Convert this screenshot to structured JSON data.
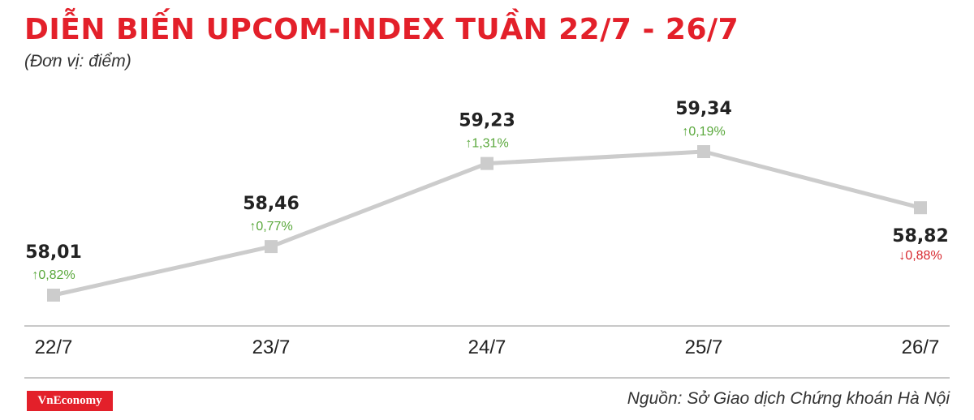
{
  "header": {
    "title": "DIỄN BIẾN UPCOM-INDEX TUẦN 22/7 - 26/7",
    "unit": "(Đơn vị: điểm)"
  },
  "footer": {
    "brand": "VnEconomy",
    "source": "Nguồn: Sở Giao dịch Chứng khoán Hà Nội"
  },
  "colors": {
    "title": "#e3202a",
    "line": "#cccccc",
    "up": "#5aa83c",
    "down": "#d7282e",
    "axis": "#c8c8c8"
  },
  "chart_data": {
    "type": "line",
    "x": [
      "22/7",
      "23/7",
      "24/7",
      "25/7",
      "26/7"
    ],
    "series": [
      {
        "values": [
          58.01,
          58.46,
          59.23,
          59.34,
          58.82
        ],
        "value_labels": [
          "58,01",
          "58,46",
          "59,23",
          "59,34",
          "58,82"
        ],
        "change_labels": [
          "0,82%",
          "0,77%",
          "1,31%",
          "0,19%",
          "0,88%"
        ],
        "change_direction": [
          "up",
          "up",
          "up",
          "up",
          "down"
        ]
      }
    ],
    "grid": false,
    "legend": "none"
  }
}
